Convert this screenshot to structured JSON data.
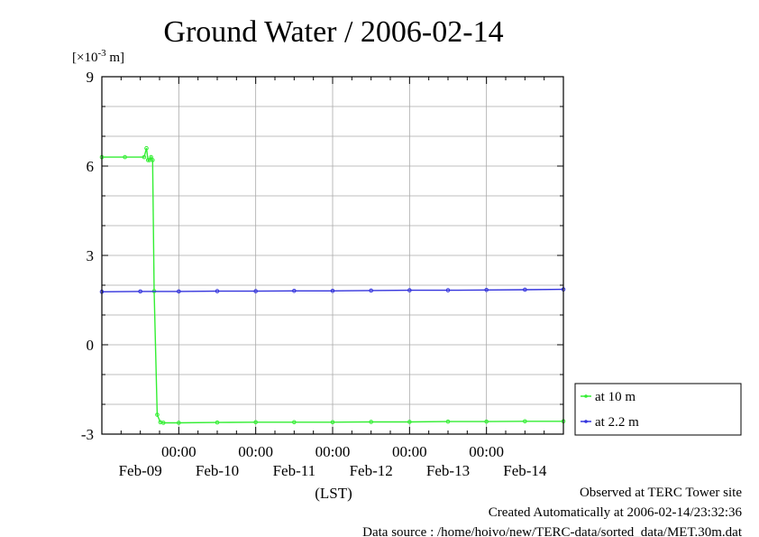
{
  "chart_data": {
    "type": "line",
    "title": "Ground Water / 2006-02-14",
    "ylabel": "[×10-3 m]",
    "ylabel_base": "[×10",
    "ylabel_exp": "-3",
    "ylabel_tail": " m]",
    "xlabel": "(LST)",
    "ylim": [
      -3,
      9
    ],
    "xlim": [
      0,
      6
    ],
    "y_ticks": [
      -3,
      0,
      3,
      6,
      9
    ],
    "y_tick_labels": [
      "-3",
      "0",
      "3",
      "6",
      "9"
    ],
    "x_ticks": [
      1,
      2,
      3,
      4,
      5
    ],
    "x_tick_time_labels": [
      "00:00",
      "00:00",
      "00:00",
      "00:00",
      "00:00"
    ],
    "x_date_labels": [
      "Feb-09",
      "Feb-10",
      "Feb-11",
      "Feb-12",
      "Feb-13",
      "Feb-14"
    ],
    "grid": true,
    "legend_position": "right-bottom",
    "series": [
      {
        "name": "at 10 m",
        "color": "#33ee33",
        "x": [
          0.0,
          0.3,
          0.55,
          0.58,
          0.6,
          0.62,
          0.64,
          0.66,
          0.68,
          0.72,
          0.76,
          0.8,
          1.0,
          1.5,
          2.0,
          2.5,
          3.0,
          3.5,
          4.0,
          4.5,
          5.0,
          5.5,
          6.0
        ],
        "values": [
          6.3,
          6.3,
          6.3,
          6.6,
          6.2,
          6.2,
          6.3,
          6.2,
          1.8,
          -2.35,
          -2.6,
          -2.62,
          -2.62,
          -2.61,
          -2.6,
          -2.6,
          -2.6,
          -2.59,
          -2.59,
          -2.58,
          -2.58,
          -2.57,
          -2.57
        ]
      },
      {
        "name": "at 2.2 m",
        "color": "#3333dd",
        "x": [
          0.0,
          0.5,
          1.0,
          1.5,
          2.0,
          2.5,
          3.0,
          3.5,
          4.0,
          4.5,
          5.0,
          5.5,
          6.0
        ],
        "values": [
          1.78,
          1.79,
          1.79,
          1.8,
          1.8,
          1.81,
          1.81,
          1.82,
          1.83,
          1.83,
          1.84,
          1.85,
          1.86
        ]
      }
    ]
  },
  "footer": {
    "observed": "Observed at TERC Tower site",
    "created": "Created Automatically at 2006-02-14/23:32:36",
    "source": "Data source : /home/hoivo/new/TERC-data/sorted_data/MET.30m.dat"
  }
}
